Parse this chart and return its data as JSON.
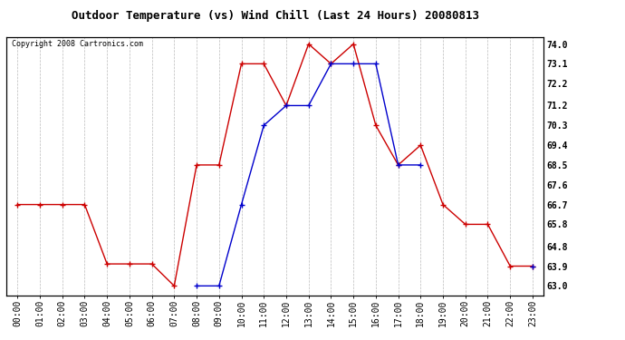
{
  "title": "Outdoor Temperature (vs) Wind Chill (Last 24 Hours) 20080813",
  "copyright": "Copyright 2008 Cartronics.com",
  "x_labels": [
    "00:00",
    "01:00",
    "02:00",
    "03:00",
    "04:00",
    "05:00",
    "06:00",
    "07:00",
    "08:00",
    "09:00",
    "10:00",
    "11:00",
    "12:00",
    "13:00",
    "14:00",
    "15:00",
    "16:00",
    "17:00",
    "18:00",
    "19:00",
    "20:00",
    "21:00",
    "22:00",
    "23:00"
  ],
  "y_ticks": [
    63.0,
    63.9,
    64.8,
    65.8,
    66.7,
    67.6,
    68.5,
    69.4,
    70.3,
    71.2,
    72.2,
    73.1,
    74.0
  ],
  "ylim": [
    62.55,
    74.3
  ],
  "temp_color": "#cc0000",
  "windchill_color": "#0000cc",
  "bg_color": "#ffffff",
  "grid_color": "#bbbbbb",
  "outdoor_temp": [
    66.7,
    66.7,
    66.7,
    66.7,
    64.0,
    64.0,
    64.0,
    63.0,
    68.5,
    68.5,
    73.1,
    73.1,
    71.2,
    74.0,
    73.1,
    74.0,
    70.3,
    68.5,
    69.4,
    66.7,
    65.8,
    65.8,
    63.9,
    63.9
  ],
  "wind_chill": [
    null,
    null,
    null,
    null,
    null,
    null,
    null,
    null,
    63.0,
    63.0,
    66.7,
    70.3,
    71.2,
    71.2,
    73.1,
    73.1,
    73.1,
    68.5,
    68.5,
    null,
    null,
    null,
    null,
    63.9
  ],
  "title_fontsize": 9,
  "tick_fontsize": 7,
  "copyright_fontsize": 6
}
